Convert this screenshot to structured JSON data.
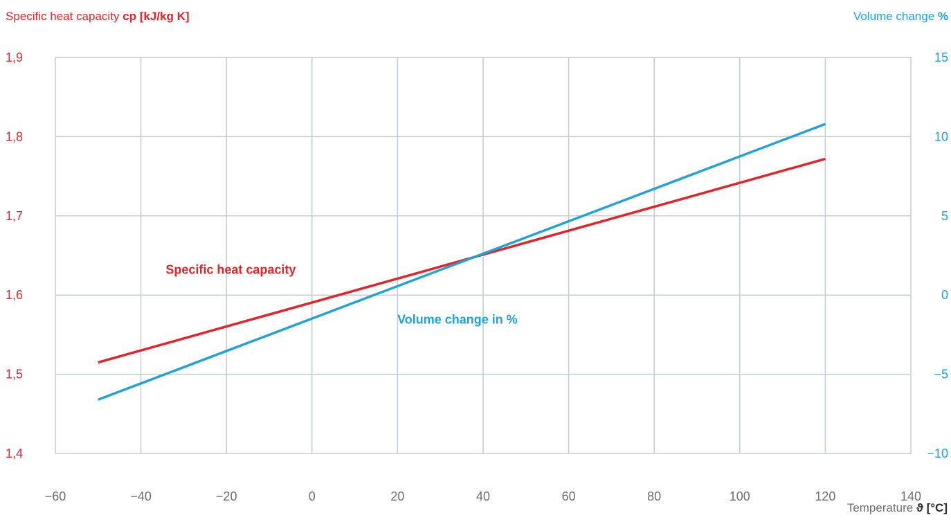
{
  "chart_data": {
    "type": "line",
    "left_axis_title": {
      "text": "Specific heat capacity ",
      "unit": "cp [kJ/kg K]"
    },
    "right_axis_title": {
      "text": "Volume change ",
      "unit": "%"
    },
    "x_axis_title": {
      "text": "Temperature ",
      "unit": "ϑ [°C]"
    },
    "xlim": [
      -60,
      140
    ],
    "x_ticks": [
      -60,
      -40,
      -20,
      0,
      20,
      40,
      60,
      80,
      100,
      120,
      140
    ],
    "y_left_lim": [
      1.4,
      1.9
    ],
    "y_left_ticks": [
      "1,4",
      "1,5",
      "1,6",
      "1,7",
      "1,8",
      "1,9"
    ],
    "y_right_lim": [
      -10,
      15
    ],
    "y_right_ticks": [
      "−10",
      "−5",
      "0",
      "5",
      "10",
      "15"
    ],
    "grid": true,
    "colors": {
      "heat": "#e4242b",
      "volume": "#1fa3d6",
      "grid": "#c5ccd3"
    },
    "series": [
      {
        "name": "Specific heat capacity",
        "axis": "left",
        "color": "#e4242b",
        "x": [
          -50,
          120
        ],
        "y": [
          1.515,
          1.772
        ],
        "label_at": [
          -19,
          1.627
        ]
      },
      {
        "name": "Volume change in %",
        "axis": "right",
        "color": "#1fa3d6",
        "x": [
          -50,
          120
        ],
        "y": [
          -6.6,
          10.8
        ],
        "label_at": [
          34,
          -1.8
        ]
      }
    ]
  }
}
